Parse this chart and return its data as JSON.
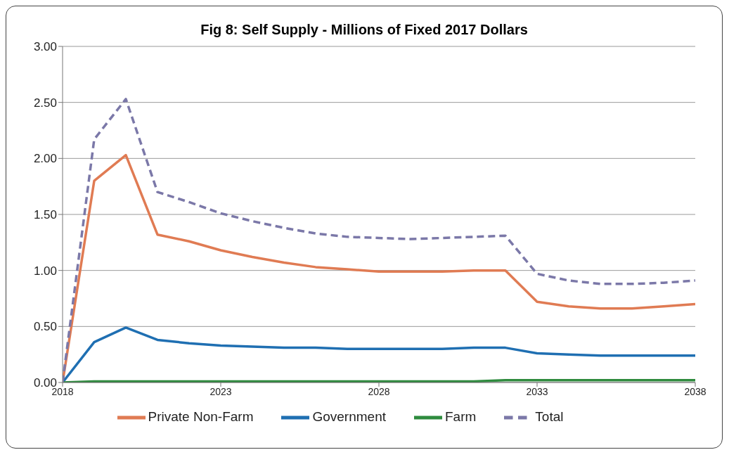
{
  "chart_data": {
    "type": "line",
    "title": "Fig 8: Self Supply - Millions of Fixed 2017 Dollars",
    "x": [
      2018,
      2019,
      2020,
      2021,
      2022,
      2023,
      2024,
      2025,
      2026,
      2027,
      2028,
      2029,
      2030,
      2031,
      2032,
      2033,
      2034,
      2035,
      2036,
      2037,
      2038
    ],
    "series": [
      {
        "name": "Private Non-Farm",
        "color": "#e07b53",
        "line_style": "solid",
        "values": [
          0,
          1.8,
          2.03,
          1.32,
          1.26,
          1.18,
          1.12,
          1.07,
          1.03,
          1.01,
          0.99,
          0.99,
          0.99,
          1.0,
          1.0,
          0.72,
          0.68,
          0.66,
          0.66,
          0.68,
          0.7
        ]
      },
      {
        "name": "Government",
        "color": "#1f6fb2",
        "line_style": "solid",
        "values": [
          0,
          0.36,
          0.49,
          0.38,
          0.35,
          0.33,
          0.32,
          0.31,
          0.31,
          0.3,
          0.3,
          0.3,
          0.3,
          0.31,
          0.31,
          0.26,
          0.25,
          0.24,
          0.24,
          0.24,
          0.24
        ]
      },
      {
        "name": "Farm",
        "color": "#2e8b3e",
        "line_style": "solid",
        "values": [
          0,
          0.01,
          0.01,
          0.01,
          0.01,
          0.01,
          0.01,
          0.01,
          0.01,
          0.01,
          0.01,
          0.01,
          0.01,
          0.01,
          0.02,
          0.02,
          0.02,
          0.02,
          0.02,
          0.02,
          0.02
        ]
      },
      {
        "name": "Total",
        "color": "#7b78a8",
        "line_style": "dashed",
        "values": [
          0,
          2.17,
          2.53,
          1.7,
          1.61,
          1.51,
          1.44,
          1.38,
          1.33,
          1.3,
          1.29,
          1.28,
          1.29,
          1.3,
          1.31,
          0.97,
          0.91,
          0.88,
          0.88,
          0.89,
          0.91
        ]
      }
    ],
    "xlim": [
      2018,
      2038
    ],
    "xticks": [
      2018,
      2023,
      2028,
      2033,
      2038
    ],
    "ylim": [
      0,
      3
    ],
    "yticks": [
      {
        "value": 0,
        "label": "0.00"
      },
      {
        "value": 0.5,
        "label": "0.50"
      },
      {
        "value": 1,
        "label": "1.00"
      },
      {
        "value": 1.5,
        "label": "1.50"
      },
      {
        "value": 2,
        "label": "2.00"
      },
      {
        "value": 2.5,
        "label": "2.50"
      },
      {
        "value": 3,
        "label": "3.00"
      }
    ],
    "grid": "y",
    "legend": "bottom",
    "marker": "none"
  }
}
